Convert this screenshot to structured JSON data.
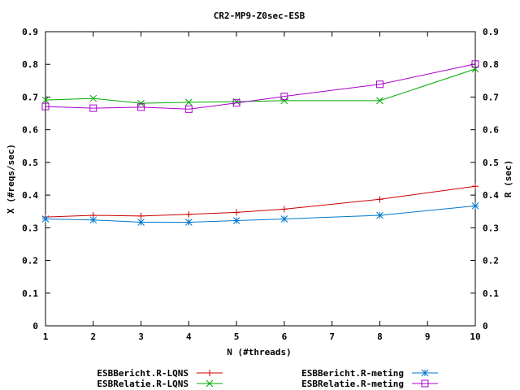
{
  "chart_data": {
    "type": "line",
    "title": "CR2-MP9-Z0sec-ESB",
    "xlabel": "N (#threads)",
    "ylabel": "X (#reqs/sec)",
    "y2label": "R (sec)",
    "xlim": [
      1,
      10
    ],
    "ylim": [
      0,
      0.9
    ],
    "y2lim": [
      0,
      0.9
    ],
    "x_ticks": [
      "1",
      "2",
      "3",
      "4",
      "5",
      "6",
      "7",
      "8",
      "9",
      "10"
    ],
    "y_ticks": [
      "0",
      "0.1",
      "0.2",
      "0.3",
      "0.4",
      "0.5",
      "0.6",
      "0.7",
      "0.8",
      "0.9"
    ],
    "y2_ticks": [
      "0",
      "0.1",
      "0.2",
      "0.3",
      "0.4",
      "0.5",
      "0.6",
      "0.7",
      "0.8",
      "0.9"
    ],
    "grid": false,
    "legend_position": "bottom",
    "series": [
      {
        "name": "ESBBericht.R-LQNS",
        "color": "#cc0000",
        "marker": "plus",
        "x": [
          1,
          2,
          3,
          4,
          5,
          6,
          8,
          10
        ],
        "values": [
          0.333,
          0.338,
          0.336,
          0.341,
          0.347,
          0.357,
          0.387,
          0.427
        ]
      },
      {
        "name": "ESBRelatie.R-LQNS",
        "color": "#00aa00",
        "marker": "cross",
        "x": [
          1,
          2,
          3,
          4,
          5,
          6,
          8,
          10
        ],
        "values": [
          0.691,
          0.696,
          0.681,
          0.684,
          0.686,
          0.689,
          0.689,
          0.786
        ]
      },
      {
        "name": "ESBBericht.R-meting",
        "color": "#0077cc",
        "marker": "star",
        "x": [
          1,
          2,
          3,
          4,
          5,
          6,
          8,
          10
        ],
        "values": [
          0.327,
          0.324,
          0.317,
          0.317,
          0.322,
          0.327,
          0.338,
          0.367
        ]
      },
      {
        "name": "ESBRelatie.R-meting",
        "color": "#aa00cc",
        "marker": "square",
        "x": [
          1,
          2,
          3,
          4,
          5,
          6,
          8,
          10
        ],
        "values": [
          0.671,
          0.666,
          0.669,
          0.663,
          0.682,
          0.702,
          0.739,
          0.801
        ]
      }
    ]
  }
}
